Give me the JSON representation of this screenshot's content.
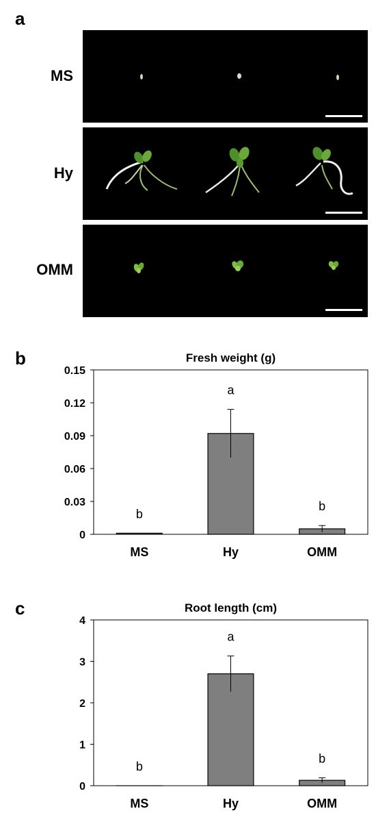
{
  "panels": {
    "a": "a",
    "b": "b",
    "c": "c"
  },
  "photos": [
    {
      "label": "MS"
    },
    {
      "label": "Hy"
    },
    {
      "label": "OMM"
    }
  ],
  "colors": {
    "bar_fill": "#7f7f7f",
    "bar_stroke": "#000000",
    "photo_bg": "#000000",
    "seedling_green": "#6fae3a",
    "root_white": "#e8e8e8",
    "scale_bar": "#ffffff"
  },
  "chart_data": [
    {
      "type": "bar",
      "title": "Fresh weight (g)",
      "categories": [
        "MS",
        "Hy",
        "OMM"
      ],
      "values": [
        0.001,
        0.092,
        0.005
      ],
      "errors": [
        0.0,
        0.022,
        0.003
      ],
      "significance": [
        "b",
        "a",
        "b"
      ],
      "ylim": [
        0,
        0.15
      ],
      "yticks": [
        0,
        0.03,
        0.06,
        0.09,
        0.12,
        0.15
      ],
      "ytick_labels": [
        "0",
        "0.03",
        "0.06",
        "0.09",
        "0.12",
        "0.15"
      ],
      "xlabel": "",
      "ylabel": "",
      "grid": false
    },
    {
      "type": "bar",
      "title": "Root length (cm)",
      "categories": [
        "MS",
        "Hy",
        "OMM"
      ],
      "values": [
        0.0,
        2.7,
        0.13
      ],
      "errors": [
        0.0,
        0.43,
        0.06
      ],
      "significance": [
        "b",
        "a",
        "b"
      ],
      "ylim": [
        0,
        4
      ],
      "yticks": [
        0,
        1,
        2,
        3,
        4
      ],
      "ytick_labels": [
        "0",
        "1",
        "2",
        "3",
        "4"
      ],
      "xlabel": "",
      "ylabel": "",
      "grid": false
    }
  ]
}
